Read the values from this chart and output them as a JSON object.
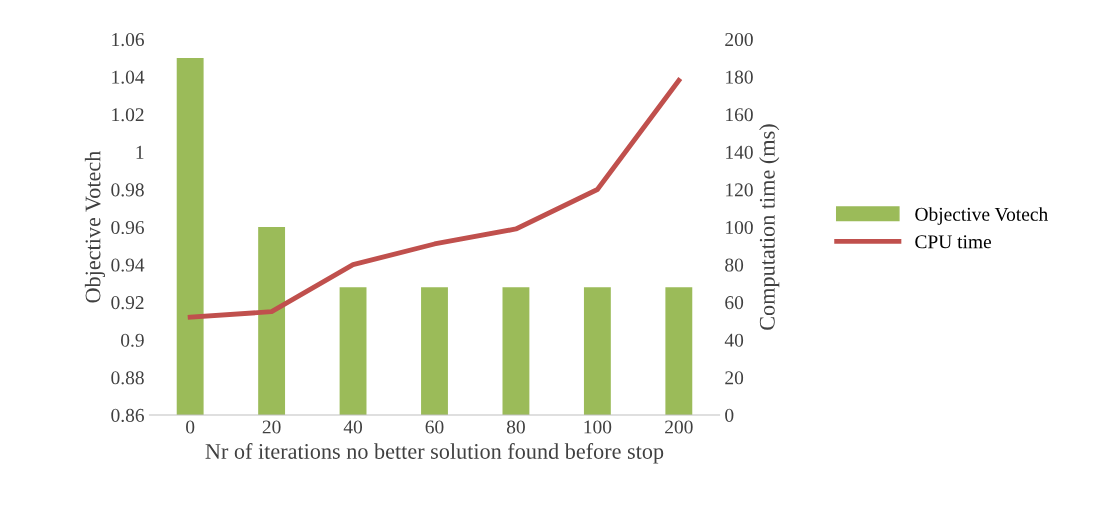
{
  "chart_data": {
    "type": "bar",
    "xlabel": "Nr of iterations no better solution found before stop",
    "ylabel": "Objective Votech",
    "y2label": "Computation time (ms)",
    "categories": [
      "0",
      "20",
      "40",
      "60",
      "80",
      "100",
      "200"
    ],
    "series": [
      {
        "name": "Objective Votech",
        "color": "#9bbb59",
        "values": [
          1.05,
          0.96,
          0.928,
          0.928,
          0.928,
          0.928,
          0.928
        ]
      },
      {
        "name": "CPU time",
        "type": "line",
        "axis": "y2",
        "color": "#c0504d",
        "values": [
          52,
          55,
          80,
          91,
          99,
          120,
          178
        ]
      }
    ],
    "ylim": [
      0.86,
      1.06
    ],
    "yticks": [
      0.86,
      0.88,
      0.9,
      0.92,
      0.94,
      0.96,
      0.98,
      1,
      1.02,
      1.04,
      1.06
    ],
    "y2lim": [
      0,
      200
    ],
    "y2ticks": [
      0,
      20,
      40,
      60,
      80,
      100,
      120,
      140,
      160,
      180,
      200
    ],
    "legend": "right",
    "marker": "none",
    "line_style": "solid",
    "grid": false
  }
}
